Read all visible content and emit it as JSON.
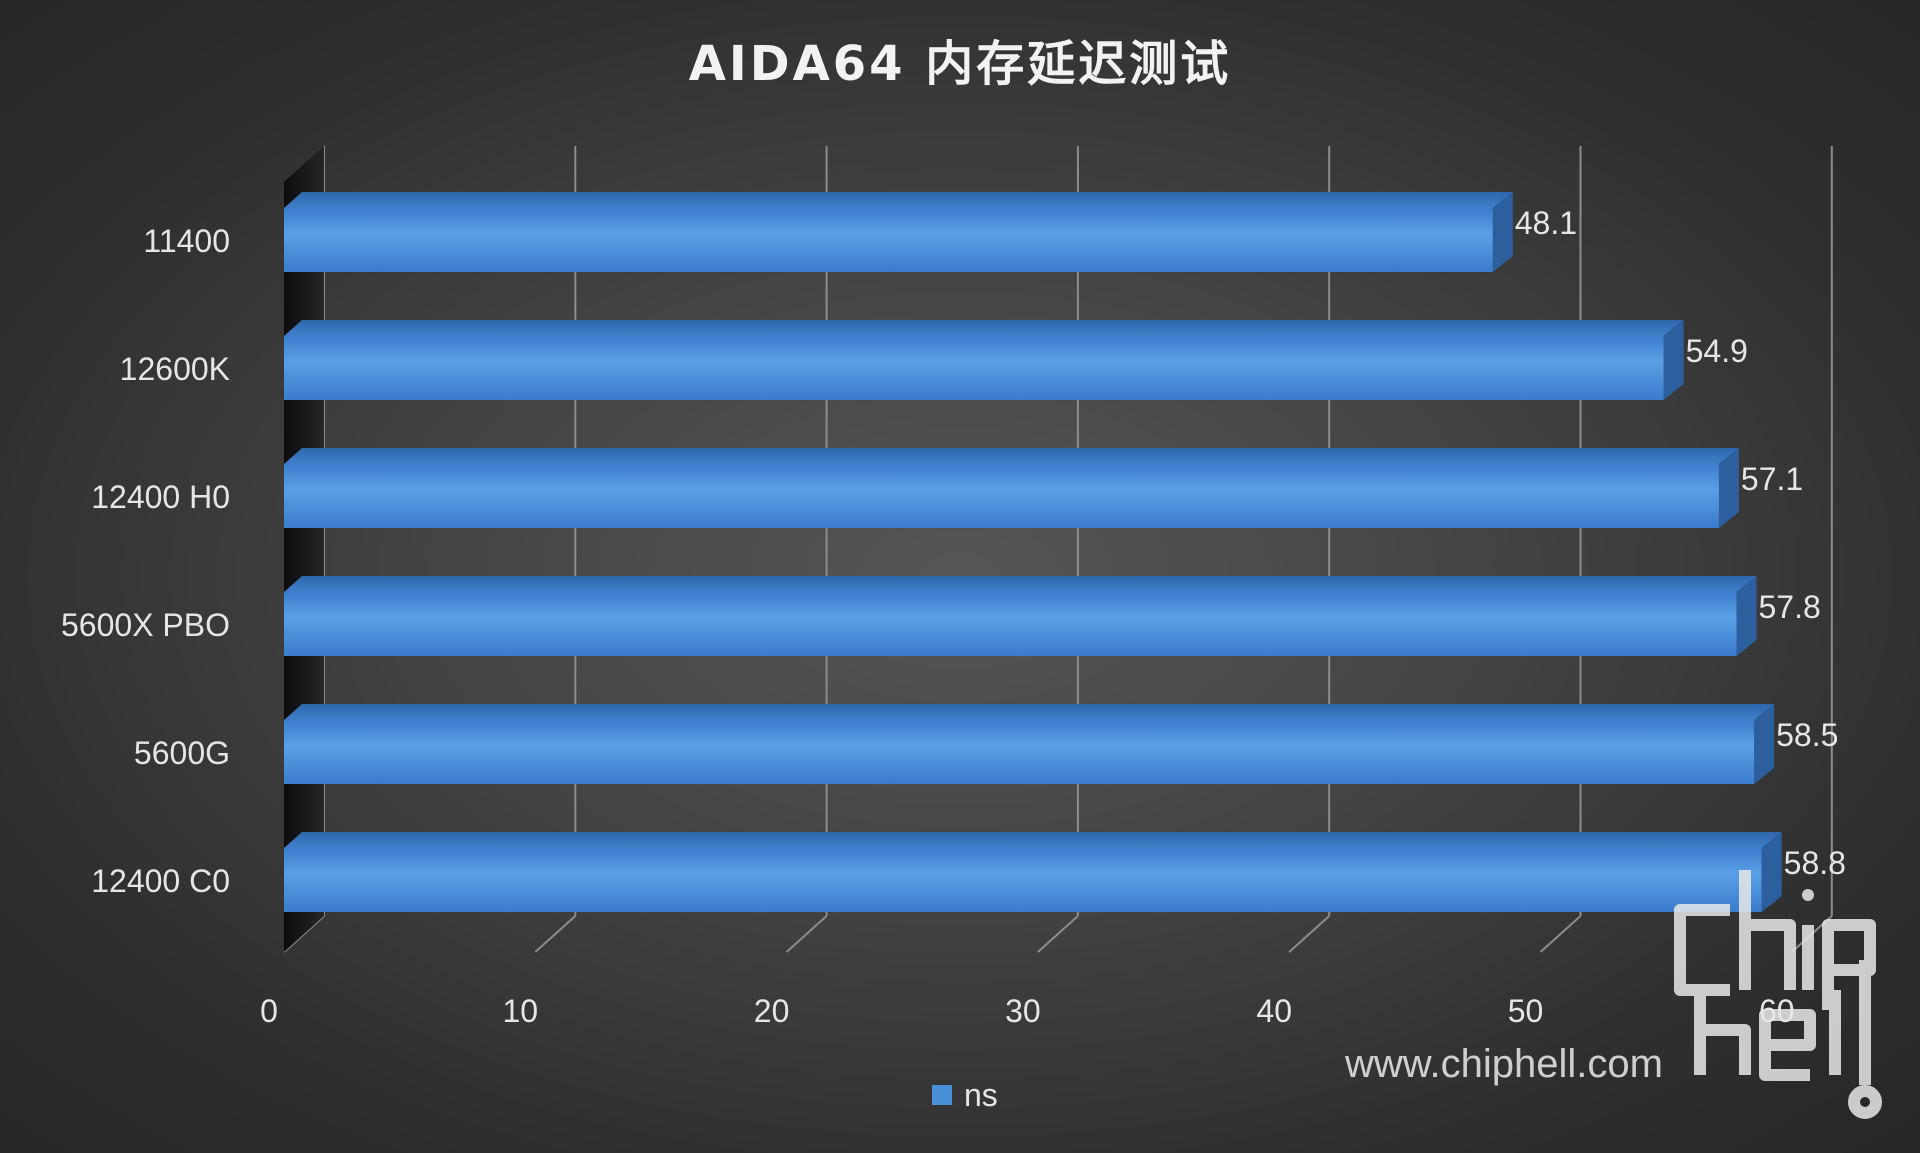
{
  "chart_data": {
    "type": "bar",
    "orientation": "horizontal",
    "style": "3d",
    "title": "AIDA64 内存延迟测试",
    "categories": [
      "11400",
      "12600K",
      "12400 H0",
      "5600X PBO",
      "5600G",
      "12400 C0"
    ],
    "series": [
      {
        "name": "ns",
        "values": [
          48.1,
          54.9,
          57.1,
          57.8,
          58.5,
          58.8
        ]
      }
    ],
    "data_labels": [
      "48.1",
      "54.9",
      "57.1",
      "57.8",
      "58.5",
      "58.8"
    ],
    "xlim": [
      0,
      60
    ],
    "x_ticks": [
      "0",
      "10",
      "20",
      "30",
      "40",
      "50",
      "60"
    ],
    "grid": true,
    "legend": "bottom",
    "colors": {
      "bar": "#4a90d9",
      "background": "#404040",
      "grid": "#9a9a9a"
    }
  },
  "watermark": {
    "url": "www.chiphell.com",
    "logo": "chiphell"
  }
}
